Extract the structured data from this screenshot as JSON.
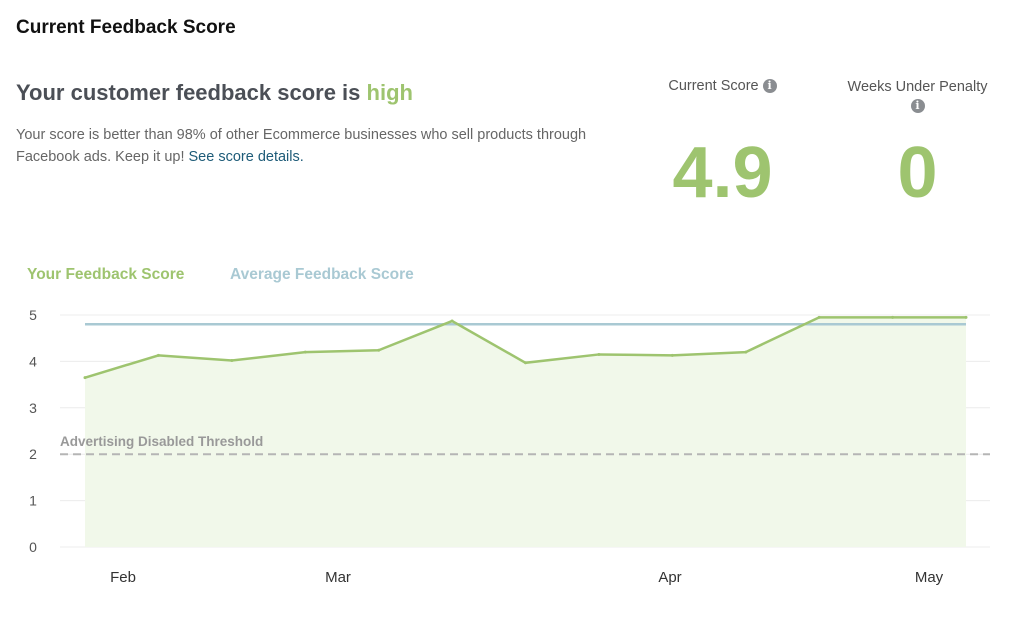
{
  "header": {
    "title": "Current Feedback Score"
  },
  "summary": {
    "headline": "Your customer feedback score is ",
    "level": "high",
    "description": "Your score is better than 98% of other Ecommerce businesses who sell products through Facebook ads. Keep it up! ",
    "link": "See score details."
  },
  "stats": {
    "current_score_label": "Current Score",
    "current_score": "4.9",
    "weeks_label": "Weeks Under Penalty",
    "weeks": "0",
    "info_icon": "info-icon"
  },
  "colors": {
    "accent": "#9ec46f",
    "average": "#a9c9d3",
    "threshold": "#b5b5b5",
    "fill": "#f1f8ea"
  },
  "chart_data": {
    "type": "line",
    "series": [
      {
        "name": "Your Feedback Score",
        "values": [
          3.65,
          4.13,
          4.02,
          4.2,
          4.24,
          4.87,
          3.97,
          4.15,
          4.13,
          4.2,
          4.95,
          4.95,
          4.95
        ],
        "color": "#9ec46f",
        "fill": true
      },
      {
        "name": "Average Feedback Score",
        "values": [
          4.8,
          4.8,
          4.8,
          4.8,
          4.8,
          4.8,
          4.8,
          4.8,
          4.8,
          4.8,
          4.8,
          4.8,
          4.8
        ],
        "color": "#a9c9d3"
      }
    ],
    "threshold": {
      "label": "Advertising Disabled Threshold",
      "value": 2
    },
    "x_tick_labels": [
      "Feb",
      "Mar",
      "Apr",
      "May"
    ],
    "y_ticks": [
      0,
      1,
      2,
      3,
      4,
      5
    ],
    "ylim": [
      0,
      5
    ],
    "grid": true,
    "legend": "top-left"
  }
}
